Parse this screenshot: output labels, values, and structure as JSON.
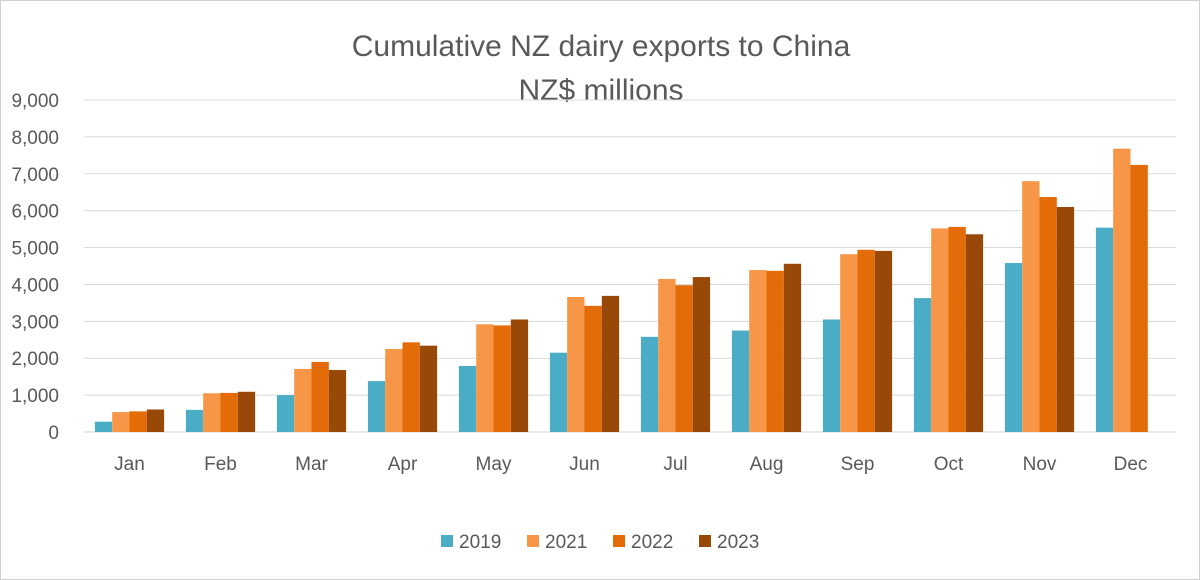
{
  "chart_data": {
    "type": "bar",
    "title": "Cumulative NZ dairy exports to China",
    "subtitle": "NZ$ millions",
    "xlabel": "",
    "ylabel": "",
    "ylim": [
      0,
      9000
    ],
    "yticks": [
      "0",
      "1,000",
      "2,000",
      "3,000",
      "4,000",
      "5,000",
      "6,000",
      "7,000",
      "8,000",
      "9,000"
    ],
    "grid": true,
    "legend_position": "bottom",
    "categories": [
      "Jan",
      "Feb",
      "Mar",
      "Apr",
      "May",
      "Jun",
      "Jul",
      "Aug",
      "Sep",
      "Oct",
      "Nov",
      "Dec"
    ],
    "series": [
      {
        "name": "2019",
        "color": "#4BACC6",
        "values": [
          280,
          600,
          1000,
          1380,
          1790,
          2150,
          2580,
          2750,
          3050,
          3630,
          4580,
          5540
        ]
      },
      {
        "name": "2021",
        "color": "#F79646",
        "values": [
          540,
          1050,
          1710,
          2250,
          2920,
          3660,
          4150,
          4390,
          4820,
          5520,
          6800,
          7680
        ]
      },
      {
        "name": "2022",
        "color": "#E36C09",
        "values": [
          560,
          1060,
          1900,
          2430,
          2890,
          3420,
          3980,
          4370,
          4940,
          5560,
          6370,
          7240
        ]
      },
      {
        "name": "2023",
        "color": "#984807",
        "values": [
          610,
          1090,
          1680,
          2340,
          3050,
          3690,
          4200,
          4560,
          4910,
          5360,
          6100,
          null
        ]
      }
    ]
  }
}
